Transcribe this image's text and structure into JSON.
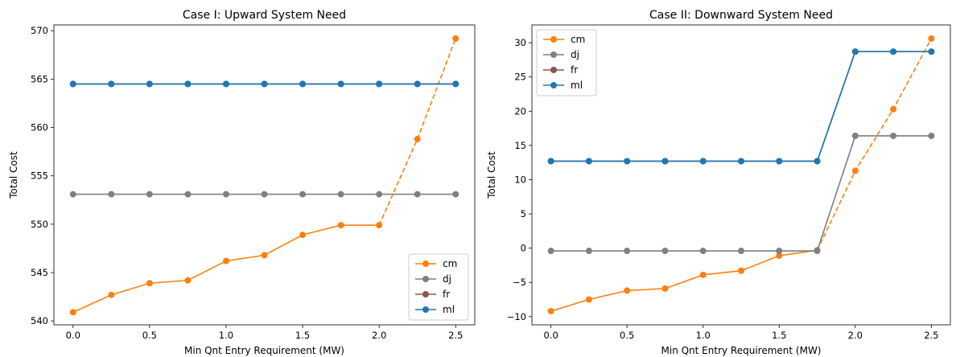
{
  "chart_data": [
    {
      "type": "line",
      "title": "Case I: Upward System Need",
      "xlabel": "Min Qnt Entry Requirement (MW)",
      "ylabel": "Total Cost",
      "xlim": [
        -0.125,
        2.625
      ],
      "ylim": [
        539.6,
        570.6
      ],
      "xticks": [
        0.0,
        0.5,
        1.0,
        1.5,
        2.0,
        2.5
      ],
      "xtick_labels": [
        "0.0",
        "0.5",
        "1.0",
        "1.5",
        "2.0",
        "2.5"
      ],
      "yticks": [
        540,
        545,
        550,
        555,
        560,
        565,
        570
      ],
      "ytick_labels": [
        "540",
        "545",
        "550",
        "555",
        "560",
        "565",
        "570"
      ],
      "grid": false,
      "legend_position": "lower-right",
      "x": [
        0.0,
        0.25,
        0.5,
        0.75,
        1.0,
        1.25,
        1.5,
        1.75,
        2.0,
        2.25,
        2.5
      ],
      "series": [
        {
          "name": "cm",
          "color": "#ff7f0e",
          "values": [
            540.9,
            542.7,
            543.9,
            544.2,
            546.2,
            546.8,
            548.9,
            549.9,
            549.9,
            558.8,
            569.2
          ],
          "dashed_from_index": 8
        },
        {
          "name": "dj",
          "color": "#7f7f7f",
          "values": [
            553.1,
            553.1,
            553.1,
            553.1,
            553.1,
            553.1,
            553.1,
            553.1,
            553.1,
            553.1,
            553.1
          ]
        },
        {
          "name": "fr",
          "color": "#8c564b",
          "values": [
            564.5,
            564.5,
            564.5,
            564.5,
            564.5,
            564.5,
            564.5,
            564.5,
            564.5,
            564.5,
            564.5
          ]
        },
        {
          "name": "ml",
          "color": "#1f77b4",
          "values": [
            564.5,
            564.5,
            564.5,
            564.5,
            564.5,
            564.5,
            564.5,
            564.5,
            564.5,
            564.5,
            564.5
          ]
        }
      ]
    },
    {
      "type": "line",
      "title": "Case II: Downward System Need",
      "xlabel": "Min Qnt Entry Requirement (MW)",
      "ylabel": "Total Cost",
      "xlim": [
        -0.125,
        2.625
      ],
      "ylim": [
        -11.2,
        32.6
      ],
      "xticks": [
        0.0,
        0.5,
        1.0,
        1.5,
        2.0,
        2.5
      ],
      "xtick_labels": [
        "0.0",
        "0.5",
        "1.0",
        "1.5",
        "2.0",
        "2.5"
      ],
      "yticks": [
        -10,
        -5,
        0,
        5,
        10,
        15,
        20,
        25,
        30
      ],
      "ytick_labels": [
        "−10",
        "−5",
        "0",
        "5",
        "10",
        "15",
        "20",
        "25",
        "30"
      ],
      "grid": false,
      "legend_position": "upper-left",
      "x": [
        0.0,
        0.25,
        0.5,
        0.75,
        1.0,
        1.25,
        1.5,
        1.75,
        2.0,
        2.25,
        2.5
      ],
      "series": [
        {
          "name": "cm",
          "color": "#ff7f0e",
          "values": [
            -9.2,
            -7.5,
            -6.2,
            -5.9,
            -3.9,
            -3.3,
            -1.1,
            -0.3,
            11.3,
            20.3,
            30.6
          ],
          "dashed_from_index": 7
        },
        {
          "name": "dj",
          "color": "#7f7f7f",
          "values": [
            -0.4,
            -0.4,
            -0.4,
            -0.4,
            -0.4,
            -0.4,
            -0.4,
            -0.4,
            16.4,
            16.4,
            16.4
          ]
        },
        {
          "name": "fr",
          "color": "#8c564b",
          "values": [
            12.7,
            12.7,
            12.7,
            12.7,
            12.7,
            12.7,
            12.7,
            12.7,
            28.7,
            28.7,
            28.7
          ]
        },
        {
          "name": "ml",
          "color": "#1f77b4",
          "values": [
            12.7,
            12.7,
            12.7,
            12.7,
            12.7,
            12.7,
            12.7,
            12.7,
            28.7,
            28.7,
            28.7
          ]
        }
      ]
    }
  ]
}
